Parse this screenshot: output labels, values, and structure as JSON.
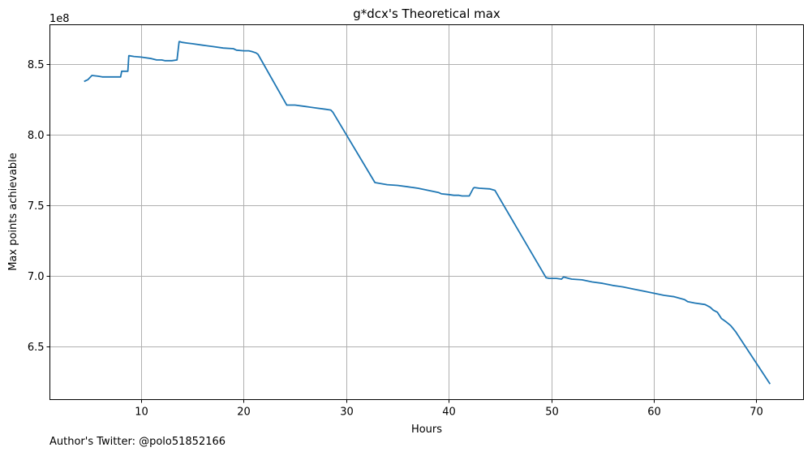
{
  "chart_data": {
    "type": "line",
    "title": "g*dcx's Theoretical max",
    "xlabel": "Hours",
    "ylabel": "Max points achievable",
    "y_offset_label": "1e8",
    "y_multiplier": 100000000,
    "xlim": [
      1.1,
      74.6
    ],
    "ylim": [
      6.12,
      8.78
    ],
    "xticks": [
      10,
      20,
      30,
      40,
      50,
      60,
      70
    ],
    "xtick_labels": [
      "10",
      "20",
      "30",
      "40",
      "50",
      "60",
      "70"
    ],
    "yticks": [
      6.5,
      7.0,
      7.5,
      8.0,
      8.5
    ],
    "ytick_labels": [
      "6.5",
      "7.0",
      "7.5",
      "8.0",
      "8.5"
    ],
    "grid": true,
    "series": [
      {
        "color": "#1f77b4",
        "x": [
          4.5,
          4.8,
          5.2,
          5.8,
          6.2,
          7.0,
          7.5,
          8.0,
          8.1,
          8.3,
          8.7,
          8.8,
          8.85,
          9.3,
          10.0,
          11.0,
          11.5,
          12.0,
          12.3,
          12.6,
          13.0,
          13.5,
          13.7,
          13.75,
          14.0,
          14.5,
          15.0,
          16.0,
          17.0,
          18.0,
          19.0,
          19.3,
          20.0,
          20.5,
          20.8,
          21.2,
          21.4,
          24.2,
          25.0,
          26.0,
          27.0,
          28.0,
          28.5,
          28.7,
          32.8,
          33.2,
          34.0,
          35.0,
          36.0,
          37.0,
          38.0,
          39.0,
          39.3,
          40.0,
          40.5,
          41.0,
          41.3,
          41.5,
          41.8,
          42.0,
          42.4,
          42.5,
          43.0,
          44.0,
          44.5,
          49.5,
          49.8,
          50.5,
          51.0,
          51.2,
          51.7,
          52.0,
          53.0,
          54.0,
          55.0,
          56.0,
          57.0,
          58.0,
          59.0,
          60.0,
          61.0,
          62.0,
          63.0,
          63.3,
          64.0,
          65.0,
          65.5,
          65.8,
          66.2,
          66.6,
          67.0,
          67.5,
          68.0,
          71.3
        ],
        "y": [
          8.38,
          8.39,
          8.42,
          8.415,
          8.41,
          8.41,
          8.41,
          8.41,
          8.45,
          8.45,
          8.45,
          8.56,
          8.56,
          8.555,
          8.55,
          8.54,
          8.53,
          8.53,
          8.525,
          8.525,
          8.525,
          8.53,
          8.66,
          8.66,
          8.655,
          8.65,
          8.645,
          8.635,
          8.625,
          8.615,
          8.61,
          8.6,
          8.595,
          8.595,
          8.59,
          8.58,
          8.57,
          8.21,
          8.21,
          8.2,
          8.19,
          8.18,
          8.175,
          8.16,
          7.66,
          7.655,
          7.645,
          7.64,
          7.63,
          7.62,
          7.605,
          7.59,
          7.58,
          7.575,
          7.57,
          7.57,
          7.565,
          7.565,
          7.565,
          7.565,
          7.62,
          7.625,
          7.62,
          7.615,
          7.605,
          6.985,
          6.98,
          6.98,
          6.975,
          6.99,
          6.98,
          6.975,
          6.97,
          6.955,
          6.945,
          6.93,
          6.92,
          6.905,
          6.89,
          6.875,
          6.86,
          6.85,
          6.83,
          6.815,
          6.805,
          6.795,
          6.775,
          6.755,
          6.74,
          6.695,
          6.675,
          6.645,
          6.6,
          6.235
        ]
      }
    ]
  },
  "footer": {
    "author": "Author's Twitter: @polo51852166"
  }
}
